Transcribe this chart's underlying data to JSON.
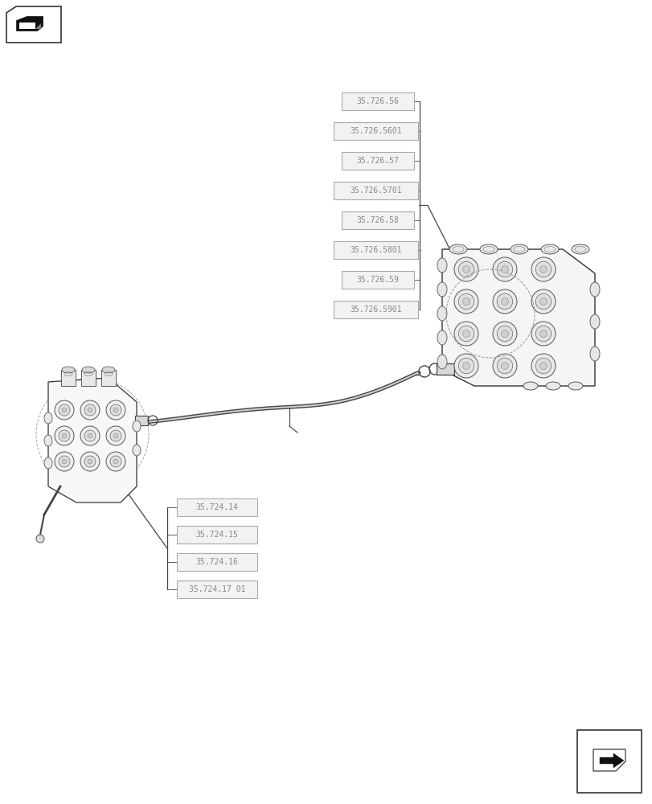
{
  "bg_color": "#ffffff",
  "line_color": "#444444",
  "box_fill": "#f2f2f2",
  "box_edge": "#aaaaaa",
  "text_color": "#888888",
  "top_labels": [
    "35.726.56",
    "35.726.5601",
    "35.726.57",
    "35.726.5701",
    "35.726.58",
    "35.726.5801",
    "35.726.59",
    "35.726.5901"
  ],
  "bottom_labels": [
    "35.724.14",
    "35.724.15",
    "35.724.16",
    "35.724.17 01"
  ],
  "fig_w": 8.12,
  "fig_h": 10.0,
  "dpi": 100
}
